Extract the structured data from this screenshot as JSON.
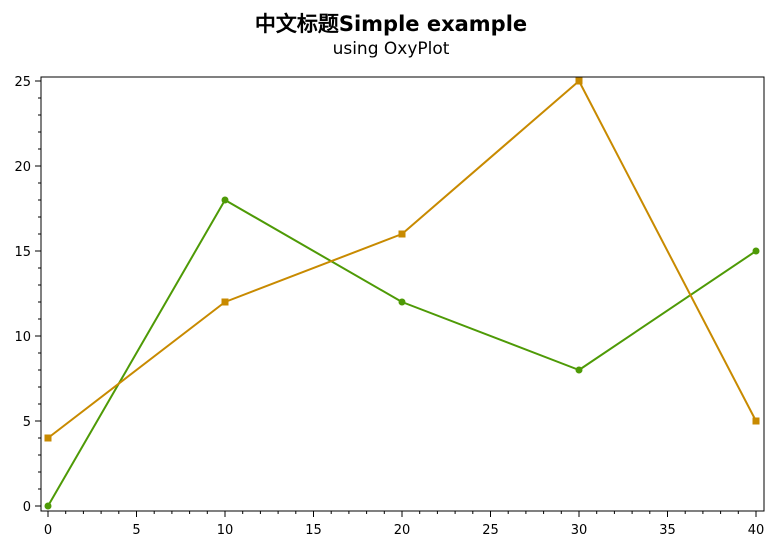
{
  "chart_data": {
    "type": "line",
    "title": "中文标题Simple example",
    "subtitle": "using OxyPlot",
    "xlabel": "",
    "ylabel": "",
    "xlim": [
      0,
      40
    ],
    "ylim": [
      0,
      25
    ],
    "x_ticks": [
      0,
      5,
      10,
      15,
      20,
      25,
      30,
      35,
      40
    ],
    "y_ticks": [
      0,
      5,
      10,
      15,
      20,
      25
    ],
    "grid": false,
    "series": [
      {
        "color": "#4e9a06",
        "marker": "circle",
        "x": [
          0,
          10,
          20,
          30,
          40
        ],
        "values": [
          0,
          18,
          12,
          8,
          15
        ]
      },
      {
        "color": "#c88a00",
        "marker": "square",
        "x": [
          0,
          10,
          20,
          30,
          40
        ],
        "values": [
          4,
          12,
          16,
          25,
          5
        ]
      }
    ]
  }
}
